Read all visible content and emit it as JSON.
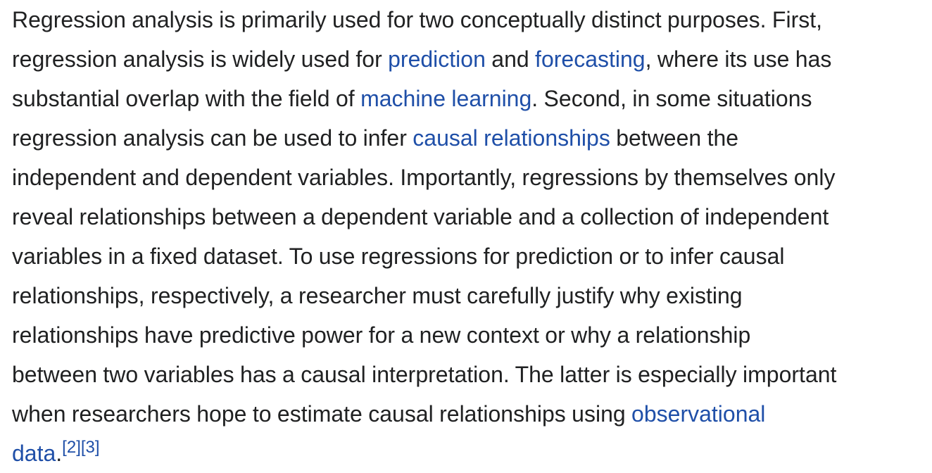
{
  "paragraph": {
    "l1": "Regression analysis is primarily used for two conceptually distinct purposes. First,",
    "l2_a": "regression analysis is widely used for ",
    "l2_link1": "prediction",
    "l2_b": " and ",
    "l2_link2": "forecasting",
    "l2_c": ", where its use has",
    "l3_a": "substantial overlap with the field of ",
    "l3_link": "machine learning",
    "l3_b": ". Second, in some situations",
    "l4_a": "regression analysis can be used to infer ",
    "l4_link": "causal relationships",
    "l4_b": " between the",
    "l5": "independent and dependent variables. Importantly, regressions by themselves only",
    "l6": "reveal relationships between a dependent variable and a collection of independent",
    "l7": "variables in a fixed dataset. To use regressions for prediction or to infer causal",
    "l8": "relationships, respectively, a researcher must carefully justify why existing",
    "l9": "relationships have predictive power for a new context or why a relationship",
    "l10": "between two variables has a causal interpretation. The latter is especially important",
    "l11_a": "when researchers hope to estimate causal relationships using ",
    "l11_link": "observational",
    "l12_link": "data",
    "l12_b": ".",
    "ref1": "[2]",
    "ref2": "[3]"
  },
  "colors": {
    "text": "#202122",
    "link": "#1f4fa8",
    "background": "#ffffff"
  }
}
